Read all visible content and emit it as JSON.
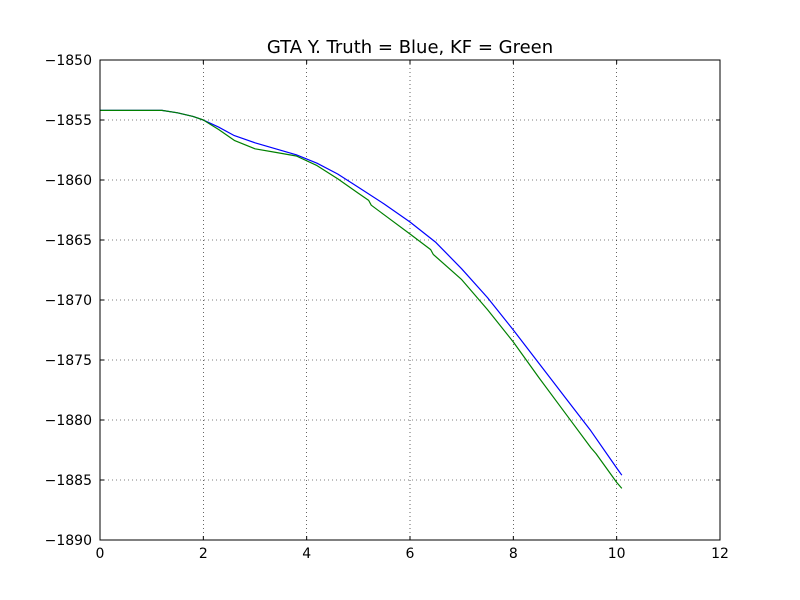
{
  "chart_data": {
    "type": "line",
    "title": "GTA Y. Truth = Blue, KF = Green",
    "xlabel": "",
    "ylabel": "",
    "xlim": [
      0,
      12
    ],
    "ylim": [
      -1890,
      -1850
    ],
    "xticks": [
      0,
      2,
      4,
      6,
      8,
      10,
      12
    ],
    "yticks": [
      -1850,
      -1855,
      -1860,
      -1865,
      -1870,
      -1875,
      -1880,
      -1885,
      -1890
    ],
    "grid": true,
    "series": [
      {
        "color": "#0000ff",
        "x": [
          0,
          0.5,
          1.0,
          1.2,
          1.5,
          1.8,
          2.0,
          2.3,
          2.6,
          3.0,
          3.4,
          3.8,
          4.2,
          4.6,
          5.0,
          5.5,
          6.0,
          6.5,
          7.0,
          7.5,
          8.0,
          8.5,
          9.0,
          9.5,
          10.0,
          10.1
        ],
        "y": [
          -1854.2,
          -1854.2,
          -1854.2,
          -1854.2,
          -1854.4,
          -1854.7,
          -1855.0,
          -1855.6,
          -1856.3,
          -1856.9,
          -1857.4,
          -1857.9,
          -1858.6,
          -1859.5,
          -1860.6,
          -1862.0,
          -1863.5,
          -1865.2,
          -1867.4,
          -1869.8,
          -1872.5,
          -1875.3,
          -1878.1,
          -1880.9,
          -1884.0,
          -1884.6
        ]
      },
      {
        "color": "#008000",
        "x": [
          0,
          0.5,
          1.0,
          1.2,
          1.5,
          1.8,
          2.0,
          2.3,
          2.6,
          3.0,
          3.4,
          3.8,
          4.2,
          4.6,
          5.0,
          5.2,
          5.25,
          5.5,
          6.0,
          6.4,
          6.45,
          7.0,
          7.5,
          8.0,
          8.5,
          9.0,
          9.5,
          9.6,
          10.0,
          10.1
        ],
        "y": [
          -1854.2,
          -1854.2,
          -1854.2,
          -1854.2,
          -1854.4,
          -1854.7,
          -1855.0,
          -1855.8,
          -1856.7,
          -1857.4,
          -1857.7,
          -1858.0,
          -1858.8,
          -1859.9,
          -1861.1,
          -1861.7,
          -1862.1,
          -1862.9,
          -1864.5,
          -1865.8,
          -1866.2,
          -1868.3,
          -1870.8,
          -1873.5,
          -1876.5,
          -1879.4,
          -1882.3,
          -1882.8,
          -1885.2,
          -1885.7
        ]
      }
    ]
  }
}
